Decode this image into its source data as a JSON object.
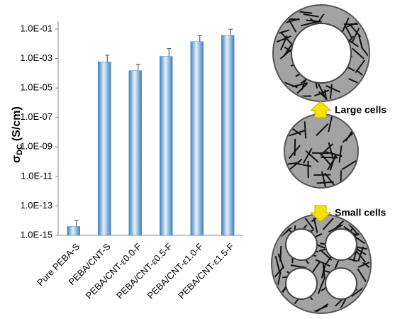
{
  "chart_data": {
    "type": "bar",
    "y_label": {
      "symbol": "σ",
      "subscript": "DC",
      "unit": "(S/cm)"
    },
    "categories": [
      "Pure PEBA-S",
      "PEBA/CNT-S",
      "PEBA/CNT-ε0.0-F",
      "PEBA/CNT-ε0.5-F",
      "PEBA/CNT-ε1.0-F",
      "PEBA/CNT-ε1.5-F"
    ],
    "values": [
      4e-15,
      0.0006,
      0.00015,
      0.0014,
      0.014,
      0.038
    ],
    "errors": [
      6e-15,
      0.0011,
      0.00026,
      0.0033,
      0.021,
      0.06
    ],
    "color": "#4a90cf",
    "log_scale": true,
    "ylim": [
      1e-15,
      0.1
    ],
    "yticks": [
      {
        "value": 0.1,
        "label": "1.0E-01"
      },
      {
        "value": 0.001,
        "label": "1.0E-03"
      },
      {
        "value": 1e-05,
        "label": "1.0E-05"
      },
      {
        "value": 1e-07,
        "label": "1.0E-07"
      },
      {
        "value": 1e-09,
        "label": "1.0E-09"
      },
      {
        "value": 1e-11,
        "label": "1.0E-11"
      },
      {
        "value": 1e-13,
        "label": "1.0E-13"
      },
      {
        "value": 1e-15,
        "label": "1.0E-15"
      }
    ]
  },
  "diagram": {
    "labels": [
      "Large cells",
      "Small cells"
    ]
  }
}
